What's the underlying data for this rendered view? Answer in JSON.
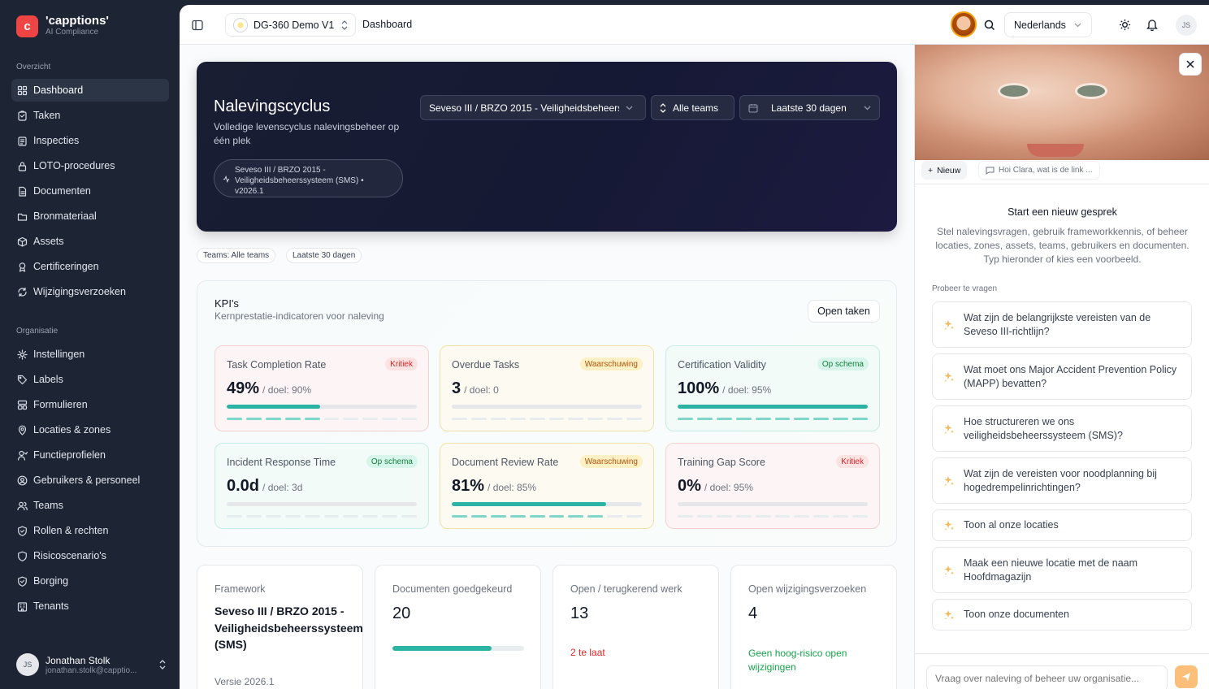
{
  "brand": {
    "name": "'capptions'",
    "sub": "AI Compliance"
  },
  "sidebar": {
    "section1": "Overzicht",
    "items1": [
      {
        "label": "Dashboard",
        "icon": "grid-icon"
      },
      {
        "label": "Taken",
        "icon": "clipboard-icon"
      },
      {
        "label": "Inspecties",
        "icon": "checklist-icon"
      },
      {
        "label": "LOTO-procedures",
        "icon": "lock-icon"
      },
      {
        "label": "Documenten",
        "icon": "document-icon"
      },
      {
        "label": "Bronmateriaal",
        "icon": "folder-icon"
      },
      {
        "label": "Assets",
        "icon": "box-icon"
      },
      {
        "label": "Certificeringen",
        "icon": "award-icon"
      },
      {
        "label": "Wijzigingsverzoeken",
        "icon": "refresh-icon"
      }
    ],
    "section2": "Organisatie",
    "items2": [
      {
        "label": "Instellingen",
        "icon": "gear-icon"
      },
      {
        "label": "Labels",
        "icon": "tag-icon"
      },
      {
        "label": "Formulieren",
        "icon": "form-icon"
      },
      {
        "label": "Locaties & zones",
        "icon": "pin-icon"
      },
      {
        "label": "Functieprofielen",
        "icon": "user-icon"
      },
      {
        "label": "Gebruikers & personeel",
        "icon": "users-circle-icon"
      },
      {
        "label": "Teams",
        "icon": "team-icon"
      },
      {
        "label": "Rollen & rechten",
        "icon": "shield-icon"
      },
      {
        "label": "Risicoscenario's",
        "icon": "shield-outline-icon"
      },
      {
        "label": "Borging",
        "icon": "shield-check-icon"
      },
      {
        "label": "Tenants",
        "icon": "building-icon"
      }
    ],
    "user": {
      "initials": "JS",
      "name": "Jonathan Stolk",
      "email": "jonathan.stolk@capptio..."
    }
  },
  "topbar": {
    "project": "DG-360 Demo V1",
    "breadcrumb": "Dashboard",
    "language": "Nederlands",
    "initials": "JS"
  },
  "hero": {
    "title": "Nalevingscyclus",
    "subtitle": "Volledige levenscyclus nalevingsbeheer op één plek",
    "pill": "Seveso III / BRZO 2015 - Veiligheidsbeheerssysteem (SMS) • v2026.1",
    "framework_select": "Seveso III / BRZO 2015 - Veiligheidsbeheerssysteem (SMS)",
    "teams_select": "Alle teams",
    "period_select": "Laatste 30 dagen"
  },
  "chips": [
    "Teams: Alle teams",
    "Laatste 30 dagen"
  ],
  "kpi": {
    "title": "KPI's",
    "subtitle": "Kernprestatie-indicatoren voor naleving",
    "button": "Open taken",
    "cards": [
      {
        "name": "Task Completion Rate",
        "badge": "Kritiek",
        "value": "49%",
        "goal": "/ doel: 90%",
        "progress": 0.49,
        "tone": "red"
      },
      {
        "name": "Overdue Tasks",
        "badge": "Waarschuwing",
        "value": "3",
        "goal": "/ doel: 0",
        "progress": 0,
        "tone": "yel"
      },
      {
        "name": "Certification Validity",
        "badge": "Op schema",
        "value": "100%",
        "goal": "/ doel: 95%",
        "progress": 1.0,
        "tone": "grn"
      },
      {
        "name": "Incident Response Time",
        "badge": "Op schema",
        "value": "0.0d",
        "goal": "/ doel: 3d",
        "progress": 0,
        "tone": "grn"
      },
      {
        "name": "Document Review Rate",
        "badge": "Waarschuwing",
        "value": "81%",
        "goal": "/ doel: 85%",
        "progress": 0.81,
        "tone": "yel"
      },
      {
        "name": "Training Gap Score",
        "badge": "Kritiek",
        "value": "0%",
        "goal": "/ doel: 95%",
        "progress": 0,
        "tone": "red"
      }
    ]
  },
  "bottom": {
    "framework": {
      "label": "Framework",
      "value": "Seveso III / BRZO 2015 - Veiligheidsbeheerssysteem (SMS)",
      "version": "Versie 2026.1"
    },
    "docs": {
      "label": "Documenten goedgekeurd",
      "value": "20",
      "progress": 0.75
    },
    "work": {
      "label": "Open / terugkerend werk",
      "value": "13",
      "note": "2 te laat"
    },
    "changes": {
      "label": "Open wijzigingsverzoeken",
      "value": "4",
      "note": "Geen hoog-risico open wijzigingen"
    }
  },
  "assistant": {
    "new_button": "Nieuw",
    "history_chip": "Hoi Clara, wat is de link ...",
    "heading": "Start een nieuw gesprek",
    "intro": "Stel nalevingsvragen, gebruik frameworkkennis, of beheer locaties, zones, assets, teams, gebruikers en documenten. Typ hieronder of kies een voorbeeld.",
    "try_label": "Probeer te vragen",
    "questions": [
      "Wat zijn de belangrijkste vereisten van de Seveso III-richtlijn?",
      "Wat moet ons Major Accident Prevention Policy (MAPP) bevatten?",
      "Hoe structureren we ons veiligheidsbeheerssysteem (SMS)?",
      "Wat zijn de vereisten voor noodplanning bij hogedrempelinrichtingen?",
      "Toon al onze locaties",
      "Maak een nieuwe locatie met de naam Hoofdmagazijn",
      "Toon onze documenten"
    ],
    "input_placeholder": "Vraag over naleving of beheer uw organisatie..."
  },
  "colors": {
    "accent": "#2bb3a3",
    "sidebar": "#1d2433",
    "brand": "#ef4444",
    "danger": "#dc2626",
    "success": "#16a34a",
    "send": "#fbbf7a"
  }
}
